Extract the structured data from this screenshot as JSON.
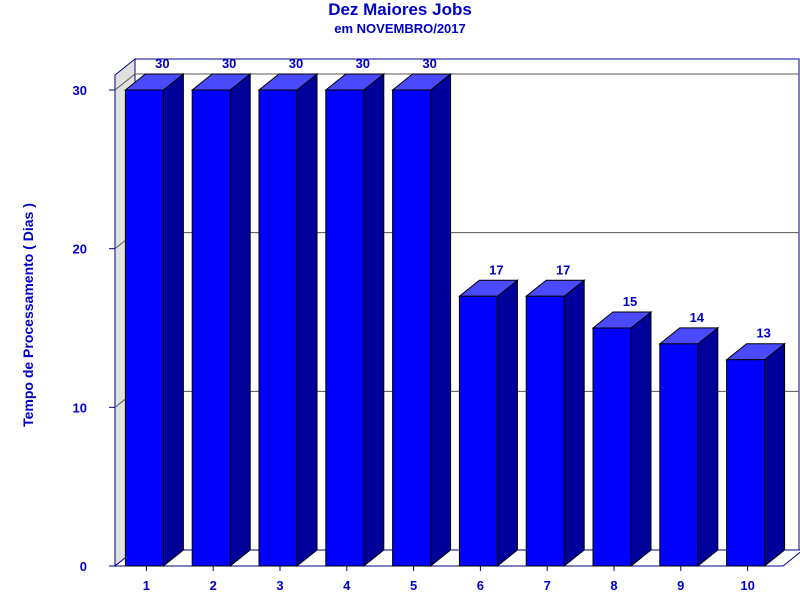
{
  "chart_data": {
    "type": "bar",
    "title": "Dez Maiores Jobs",
    "subtitle": "em NOVEMBRO/2017",
    "xlabel": "",
    "ylabel": "Tempo de Processamento ( Dias )",
    "categories": [
      "1",
      "2",
      "3",
      "4",
      "5",
      "6",
      "7",
      "8",
      "9",
      "10"
    ],
    "values": [
      30,
      30,
      30,
      30,
      30,
      17,
      17,
      15,
      14,
      13
    ],
    "ylim": [
      0,
      30
    ],
    "yticks": [
      0,
      10,
      20,
      30
    ],
    "grid": true,
    "style": "3d",
    "colors": {
      "bar_front": "#0000ff",
      "bar_side": "#00009a",
      "bar_top": "#4a4aff",
      "text": "#0000cc",
      "back_wall": "#ffffff",
      "side_wall": "#e0e0e0",
      "frame": "#00008b"
    }
  }
}
